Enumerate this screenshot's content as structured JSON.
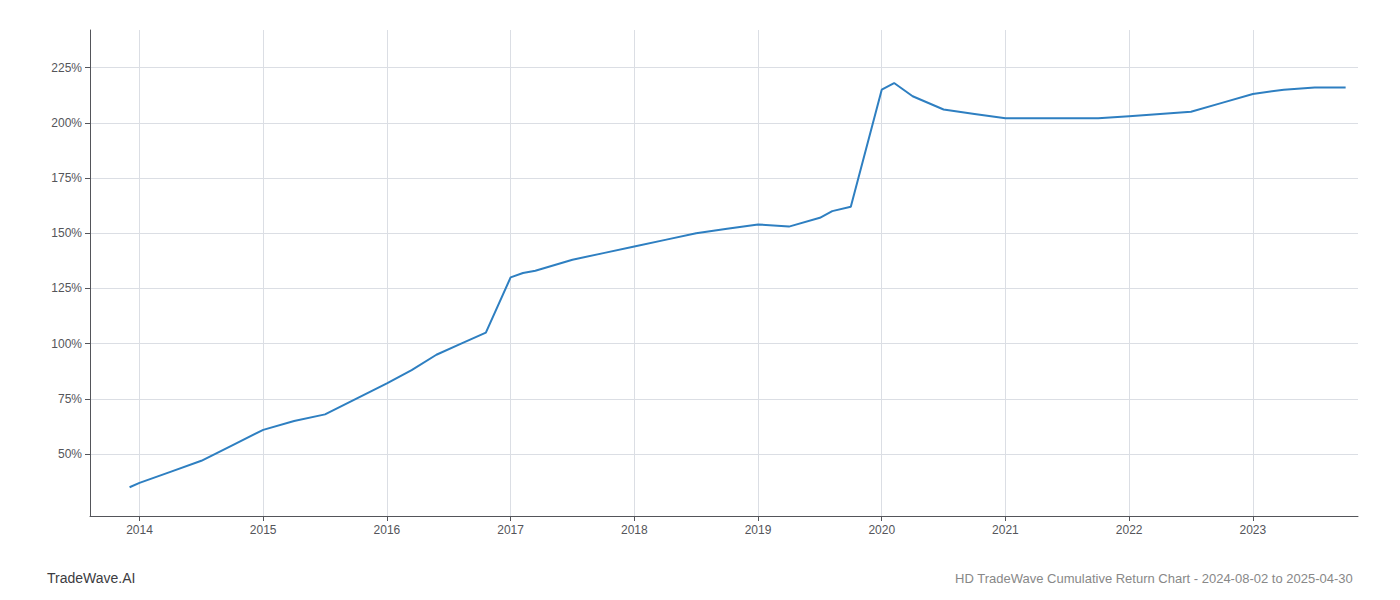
{
  "chart_data": {
    "type": "line",
    "title": "HD TradeWave Cumulative Return Chart - 2024-08-02 to 2025-04-30",
    "annotations": [
      "TradeWave.AI"
    ],
    "color": "#2e7fc1",
    "x": [
      2013.92,
      2014.0,
      2014.25,
      2014.5,
      2014.75,
      2015.0,
      2015.25,
      2015.5,
      2015.75,
      2016.0,
      2016.2,
      2016.4,
      2016.6,
      2016.8,
      2017.0,
      2017.1,
      2017.2,
      2017.5,
      2017.75,
      2018.0,
      2018.25,
      2018.5,
      2018.75,
      2019.0,
      2019.25,
      2019.5,
      2019.6,
      2019.75,
      2020.0,
      2020.1,
      2020.25,
      2020.5,
      2020.75,
      2021.0,
      2021.25,
      2021.5,
      2021.75,
      2022.0,
      2022.25,
      2022.5,
      2022.75,
      2023.0,
      2023.25,
      2023.5,
      2023.75
    ],
    "values": [
      35,
      37,
      42,
      47,
      54,
      61,
      65,
      68,
      75,
      82,
      88,
      95,
      100,
      105,
      130,
      132,
      133,
      138,
      141,
      144,
      147,
      150,
      152,
      154,
      153,
      157,
      160,
      162,
      215,
      218,
      212,
      206,
      204,
      202,
      202,
      202,
      202,
      203,
      204,
      205,
      209,
      213,
      215,
      216,
      216
    ],
    "xlim": [
      2013.6,
      2023.85
    ],
    "xticks": [
      2014,
      2015,
      2016,
      2017,
      2018,
      2019,
      2020,
      2021,
      2022,
      2023
    ],
    "ylim": [
      22,
      242
    ],
    "yticks": [
      {
        "value": 50,
        "label": "50%"
      },
      {
        "value": 75,
        "label": "75%"
      },
      {
        "value": 100,
        "label": "100%"
      },
      {
        "value": 125,
        "label": "125%"
      },
      {
        "value": 150,
        "label": "150%"
      },
      {
        "value": 175,
        "label": "175%"
      },
      {
        "value": 200,
        "label": "200%"
      },
      {
        "value": 225,
        "label": "225%"
      }
    ],
    "grid": true
  }
}
